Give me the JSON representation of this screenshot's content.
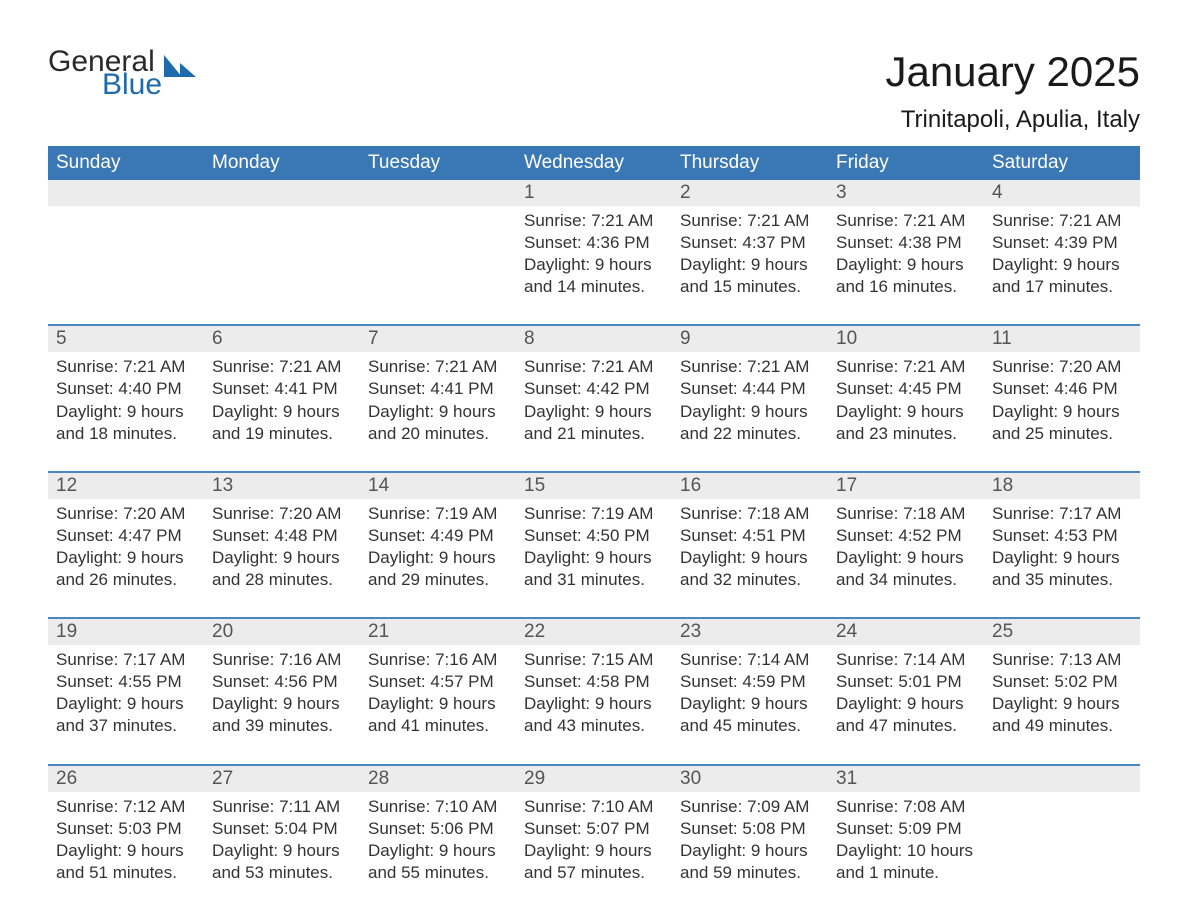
{
  "logo": {
    "line1": "General",
    "line2": "Blue"
  },
  "header": {
    "month_title": "January 2025",
    "location": "Trinitapoli, Apulia, Italy"
  },
  "style": {
    "blue_header": "#3a78b5",
    "blue_text": "#1f6aad",
    "row_sep": "#4a86c0",
    "gray_band": "#ececec",
    "text_dark": "#333333",
    "background": "#ffffff",
    "month_title_fontsize": 42,
    "location_fontsize": 24,
    "weekday_fontsize": 19,
    "daynum_fontsize": 19,
    "body_fontsize": 17
  },
  "weekdays": [
    "Sunday",
    "Monday",
    "Tuesday",
    "Wednesday",
    "Thursday",
    "Friday",
    "Saturday"
  ],
  "weeks": [
    [
      {
        "day": "",
        "sunrise": "",
        "sunset": "",
        "daylight": ""
      },
      {
        "day": "",
        "sunrise": "",
        "sunset": "",
        "daylight": ""
      },
      {
        "day": "",
        "sunrise": "",
        "sunset": "",
        "daylight": ""
      },
      {
        "day": "1",
        "sunrise": "Sunrise: 7:21 AM",
        "sunset": "Sunset: 4:36 PM",
        "daylight": "Daylight: 9 hours and 14 minutes."
      },
      {
        "day": "2",
        "sunrise": "Sunrise: 7:21 AM",
        "sunset": "Sunset: 4:37 PM",
        "daylight": "Daylight: 9 hours and 15 minutes."
      },
      {
        "day": "3",
        "sunrise": "Sunrise: 7:21 AM",
        "sunset": "Sunset: 4:38 PM",
        "daylight": "Daylight: 9 hours and 16 minutes."
      },
      {
        "day": "4",
        "sunrise": "Sunrise: 7:21 AM",
        "sunset": "Sunset: 4:39 PM",
        "daylight": "Daylight: 9 hours and 17 minutes."
      }
    ],
    [
      {
        "day": "5",
        "sunrise": "Sunrise: 7:21 AM",
        "sunset": "Sunset: 4:40 PM",
        "daylight": "Daylight: 9 hours and 18 minutes."
      },
      {
        "day": "6",
        "sunrise": "Sunrise: 7:21 AM",
        "sunset": "Sunset: 4:41 PM",
        "daylight": "Daylight: 9 hours and 19 minutes."
      },
      {
        "day": "7",
        "sunrise": "Sunrise: 7:21 AM",
        "sunset": "Sunset: 4:41 PM",
        "daylight": "Daylight: 9 hours and 20 minutes."
      },
      {
        "day": "8",
        "sunrise": "Sunrise: 7:21 AM",
        "sunset": "Sunset: 4:42 PM",
        "daylight": "Daylight: 9 hours and 21 minutes."
      },
      {
        "day": "9",
        "sunrise": "Sunrise: 7:21 AM",
        "sunset": "Sunset: 4:44 PM",
        "daylight": "Daylight: 9 hours and 22 minutes."
      },
      {
        "day": "10",
        "sunrise": "Sunrise: 7:21 AM",
        "sunset": "Sunset: 4:45 PM",
        "daylight": "Daylight: 9 hours and 23 minutes."
      },
      {
        "day": "11",
        "sunrise": "Sunrise: 7:20 AM",
        "sunset": "Sunset: 4:46 PM",
        "daylight": "Daylight: 9 hours and 25 minutes."
      }
    ],
    [
      {
        "day": "12",
        "sunrise": "Sunrise: 7:20 AM",
        "sunset": "Sunset: 4:47 PM",
        "daylight": "Daylight: 9 hours and 26 minutes."
      },
      {
        "day": "13",
        "sunrise": "Sunrise: 7:20 AM",
        "sunset": "Sunset: 4:48 PM",
        "daylight": "Daylight: 9 hours and 28 minutes."
      },
      {
        "day": "14",
        "sunrise": "Sunrise: 7:19 AM",
        "sunset": "Sunset: 4:49 PM",
        "daylight": "Daylight: 9 hours and 29 minutes."
      },
      {
        "day": "15",
        "sunrise": "Sunrise: 7:19 AM",
        "sunset": "Sunset: 4:50 PM",
        "daylight": "Daylight: 9 hours and 31 minutes."
      },
      {
        "day": "16",
        "sunrise": "Sunrise: 7:18 AM",
        "sunset": "Sunset: 4:51 PM",
        "daylight": "Daylight: 9 hours and 32 minutes."
      },
      {
        "day": "17",
        "sunrise": "Sunrise: 7:18 AM",
        "sunset": "Sunset: 4:52 PM",
        "daylight": "Daylight: 9 hours and 34 minutes."
      },
      {
        "day": "18",
        "sunrise": "Sunrise: 7:17 AM",
        "sunset": "Sunset: 4:53 PM",
        "daylight": "Daylight: 9 hours and 35 minutes."
      }
    ],
    [
      {
        "day": "19",
        "sunrise": "Sunrise: 7:17 AM",
        "sunset": "Sunset: 4:55 PM",
        "daylight": "Daylight: 9 hours and 37 minutes."
      },
      {
        "day": "20",
        "sunrise": "Sunrise: 7:16 AM",
        "sunset": "Sunset: 4:56 PM",
        "daylight": "Daylight: 9 hours and 39 minutes."
      },
      {
        "day": "21",
        "sunrise": "Sunrise: 7:16 AM",
        "sunset": "Sunset: 4:57 PM",
        "daylight": "Daylight: 9 hours and 41 minutes."
      },
      {
        "day": "22",
        "sunrise": "Sunrise: 7:15 AM",
        "sunset": "Sunset: 4:58 PM",
        "daylight": "Daylight: 9 hours and 43 minutes."
      },
      {
        "day": "23",
        "sunrise": "Sunrise: 7:14 AM",
        "sunset": "Sunset: 4:59 PM",
        "daylight": "Daylight: 9 hours and 45 minutes."
      },
      {
        "day": "24",
        "sunrise": "Sunrise: 7:14 AM",
        "sunset": "Sunset: 5:01 PM",
        "daylight": "Daylight: 9 hours and 47 minutes."
      },
      {
        "day": "25",
        "sunrise": "Sunrise: 7:13 AM",
        "sunset": "Sunset: 5:02 PM",
        "daylight": "Daylight: 9 hours and 49 minutes."
      }
    ],
    [
      {
        "day": "26",
        "sunrise": "Sunrise: 7:12 AM",
        "sunset": "Sunset: 5:03 PM",
        "daylight": "Daylight: 9 hours and 51 minutes."
      },
      {
        "day": "27",
        "sunrise": "Sunrise: 7:11 AM",
        "sunset": "Sunset: 5:04 PM",
        "daylight": "Daylight: 9 hours and 53 minutes."
      },
      {
        "day": "28",
        "sunrise": "Sunrise: 7:10 AM",
        "sunset": "Sunset: 5:06 PM",
        "daylight": "Daylight: 9 hours and 55 minutes."
      },
      {
        "day": "29",
        "sunrise": "Sunrise: 7:10 AM",
        "sunset": "Sunset: 5:07 PM",
        "daylight": "Daylight: 9 hours and 57 minutes."
      },
      {
        "day": "30",
        "sunrise": "Sunrise: 7:09 AM",
        "sunset": "Sunset: 5:08 PM",
        "daylight": "Daylight: 9 hours and 59 minutes."
      },
      {
        "day": "31",
        "sunrise": "Sunrise: 7:08 AM",
        "sunset": "Sunset: 5:09 PM",
        "daylight": "Daylight: 10 hours and 1 minute."
      },
      {
        "day": "",
        "sunrise": "",
        "sunset": "",
        "daylight": ""
      }
    ]
  ]
}
